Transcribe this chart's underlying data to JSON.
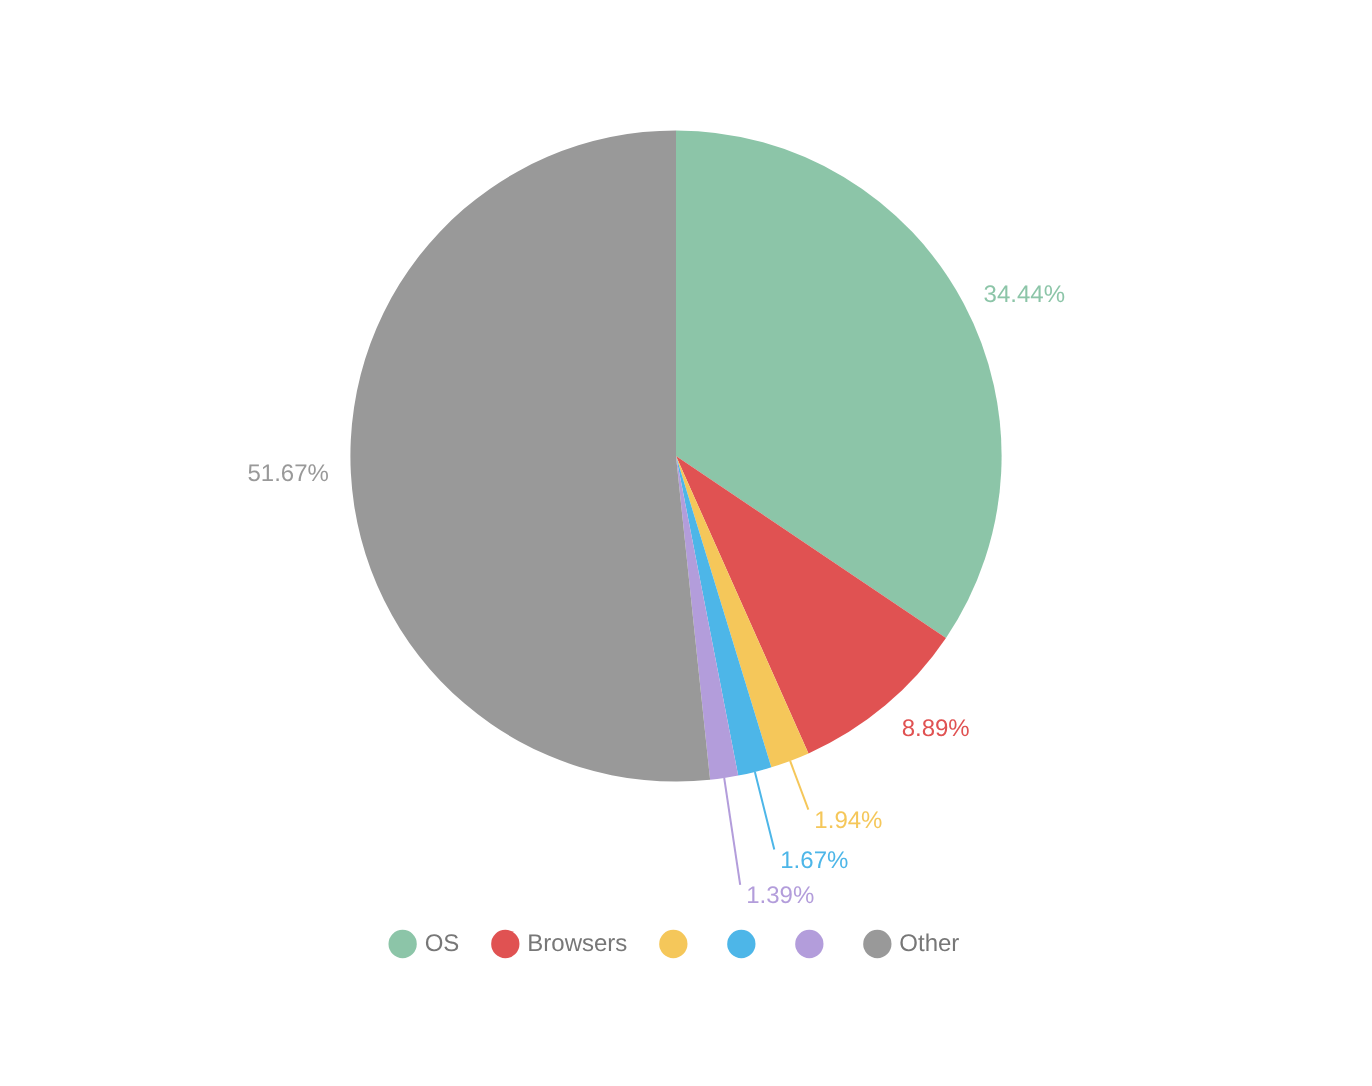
{
  "chart_data": {
    "type": "pie",
    "categories": [
      "OS",
      "Browsers",
      null,
      null,
      null,
      "Other"
    ],
    "values": [
      34.44,
      8.89,
      1.94,
      1.67,
      1.39,
      51.67
    ],
    "colors": [
      "#8cc5a8",
      "#e05252",
      "#f5c75a",
      "#4db6e8",
      "#b39ddb",
      "#999999"
    ],
    "value_labels": [
      "34.44%",
      "8.89%",
      "1.94%",
      "1.67%",
      "1.39%",
      "51.67%"
    ],
    "legend": "bottom"
  }
}
